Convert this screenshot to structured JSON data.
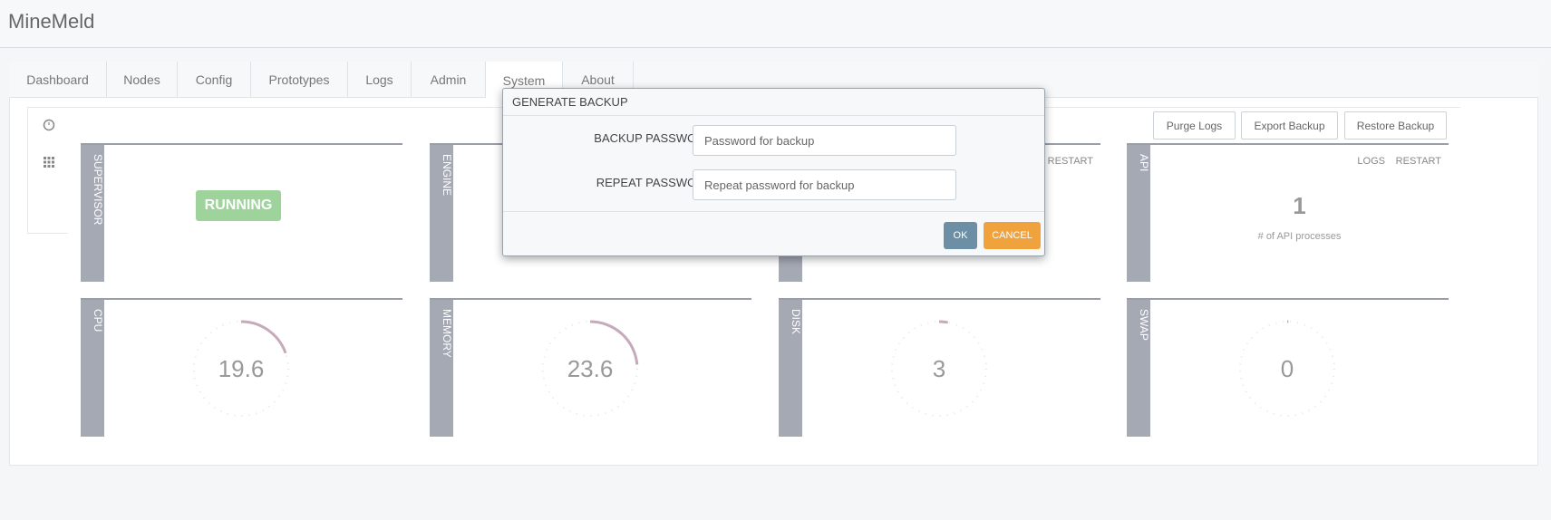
{
  "header": {
    "title": "MineMeld"
  },
  "tabs": [
    {
      "label": "Dashboard"
    },
    {
      "label": "Nodes"
    },
    {
      "label": "Config"
    },
    {
      "label": "Prototypes"
    },
    {
      "label": "Logs"
    },
    {
      "label": "Admin"
    },
    {
      "label": "System",
      "active": true
    },
    {
      "label": "About"
    }
  ],
  "toolbar": [
    "Purge Logs",
    "Export Backup",
    "Restore Backup"
  ],
  "status_panels": [
    {
      "label": "SUPERVISOR",
      "status": "RUNNING"
    },
    {
      "label": "ENGINE"
    },
    {
      "actions": [
        "RESTART"
      ]
    },
    {
      "label": "API",
      "actions": [
        "LOGS",
        "RESTART"
      ],
      "value": 1,
      "caption": "# of API processes"
    }
  ],
  "gauges": [
    {
      "label": "CPU",
      "value": 19.6
    },
    {
      "label": "MEMORY",
      "value": 23.6
    },
    {
      "label": "DISK",
      "value": 3
    },
    {
      "label": "SWAP",
      "value": 0
    }
  ],
  "modal": {
    "title": "GENERATE BACKUP",
    "fields": [
      {
        "label": "BACKUP PASSWORD",
        "placeholder": "Password for backup"
      },
      {
        "label": "REPEAT PASSWORD",
        "placeholder": "Repeat password for backup"
      }
    ],
    "ok": "OK",
    "cancel": "CANCEL"
  }
}
